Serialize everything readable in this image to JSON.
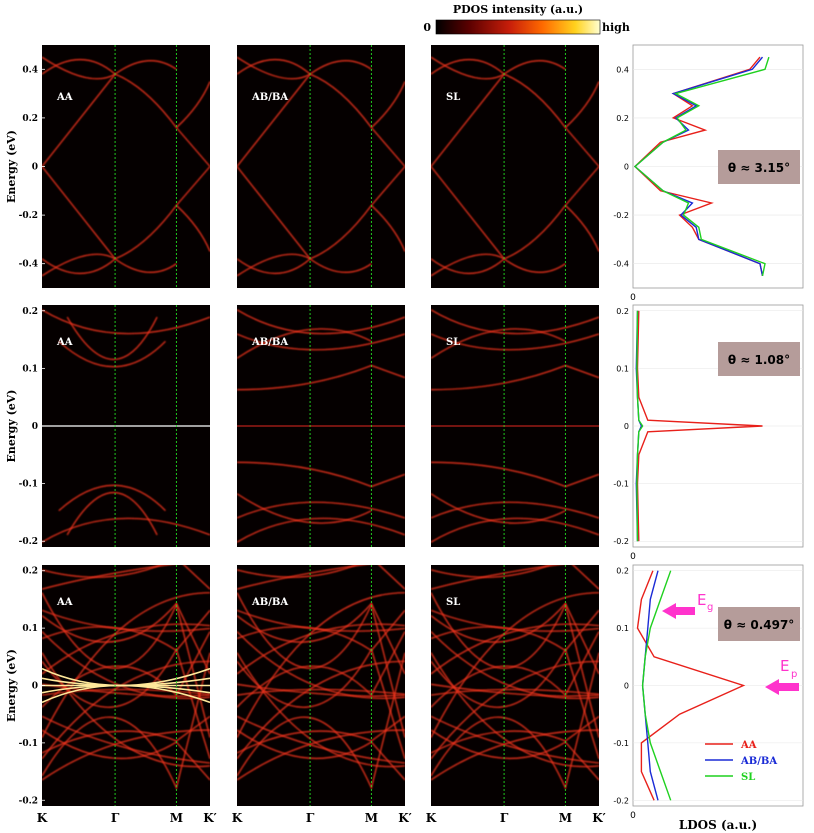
{
  "colorbar": {
    "title": "PDOS intensity (a.u.)",
    "low_label": "0",
    "high_label": "high",
    "colors": [
      "#000000",
      "#5a0000",
      "#c81e0a",
      "#ff6a00",
      "#ffd21e",
      "#ffffd2"
    ]
  },
  "band_ylabel": "Energy (eV)",
  "ldos_xlabel": "LDOS (a.u.)",
  "kpath_ticks": [
    "K",
    "Γ",
    "M",
    "K′"
  ],
  "stacking_labels": [
    "AA",
    "AB/BA",
    "SL"
  ],
  "rows": [
    {
      "theta_label": "θ ≈ 3.15°",
      "ylim": [
        -0.5,
        0.5
      ],
      "yticks": [
        "0.4",
        "0.2",
        "0",
        "-0.2",
        "-0.4"
      ],
      "ldos_yticks": [
        "0.4",
        "0.2",
        "0",
        "-0.2",
        "-0.4"
      ]
    },
    {
      "theta_label": "θ ≈ 1.08°",
      "ylim": [
        -0.21,
        0.21
      ],
      "yticks": [
        "0.2",
        "0.1",
        "0",
        "-0.1",
        "-0.2"
      ],
      "ldos_yticks": [
        "0.2",
        "0.1",
        "0",
        "-0.1",
        "-0.2"
      ]
    },
    {
      "theta_label": "θ ≈ 0.497°",
      "ylim": [
        -0.21,
        0.21
      ],
      "yticks": [
        "0.2",
        "0.1",
        "0",
        "-0.1",
        "-0.2"
      ],
      "ldos_yticks": [
        "0.2",
        "0.1",
        "0",
        "-0.1",
        "-0.2"
      ]
    }
  ],
  "ldos_x_tick": "0",
  "annotations": {
    "eg_main": "E",
    "eg_sub": "g",
    "ep_main": "E",
    "ep_sub": "p",
    "color": "#ff33cc"
  },
  "legend": [
    {
      "label": "AA",
      "color": "#e8201a"
    },
    {
      "label": "AB/BA",
      "color": "#1a2bd6"
    },
    {
      "label": "SL",
      "color": "#1fd11f"
    }
  ],
  "chart_data": [
    {
      "type": "heatmap",
      "row": 1,
      "description_key": "theta_3.15",
      "ylim": [
        -0.5,
        0.5
      ],
      "ldos": {
        "energy": [
          -0.45,
          -0.4,
          -0.3,
          -0.25,
          -0.2,
          -0.15,
          -0.1,
          0.0,
          0.1,
          0.15,
          0.2,
          0.25,
          0.3,
          0.4,
          0.45
        ],
        "AA": [
          1.0,
          0.98,
          0.5,
          0.45,
          0.35,
          0.6,
          0.2,
          0.0,
          0.2,
          0.55,
          0.3,
          0.45,
          0.3,
          0.9,
          0.98
        ],
        "AB/BA": [
          1.0,
          0.98,
          0.5,
          0.48,
          0.36,
          0.45,
          0.22,
          0.0,
          0.22,
          0.42,
          0.32,
          0.48,
          0.3,
          0.92,
          1.0
        ],
        "SL": [
          1.0,
          1.02,
          0.52,
          0.5,
          0.38,
          0.42,
          0.22,
          0.0,
          0.22,
          0.4,
          0.33,
          0.5,
          0.32,
          1.02,
          1.05
        ]
      }
    },
    {
      "type": "heatmap",
      "row": 2,
      "description_key": "theta_1.08",
      "ylim": [
        -0.21,
        0.21
      ],
      "ldos": {
        "energy": [
          -0.2,
          -0.1,
          -0.05,
          -0.01,
          0.0,
          0.01,
          0.05,
          0.1,
          0.2
        ],
        "AA": [
          0.03,
          0.02,
          0.03,
          0.1,
          1.0,
          0.1,
          0.03,
          0.02,
          0.03
        ],
        "AB/BA": [
          0.02,
          0.01,
          0.02,
          0.03,
          0.05,
          0.03,
          0.02,
          0.01,
          0.02
        ],
        "SL": [
          0.02,
          0.015,
          0.02,
          0.03,
          0.06,
          0.03,
          0.02,
          0.015,
          0.02
        ]
      }
    },
    {
      "type": "heatmap",
      "row": 3,
      "description_key": "theta_0.497",
      "ylim": [
        -0.21,
        0.21
      ],
      "ldos": {
        "energy": [
          -0.2,
          -0.15,
          -0.1,
          -0.05,
          0.0,
          0.05,
          0.1,
          0.15,
          0.2
        ],
        "AA": [
          0.15,
          0.05,
          0.05,
          0.35,
          0.85,
          0.15,
          0.02,
          0.05,
          0.14
        ],
        "AB/BA": [
          0.18,
          0.12,
          0.1,
          0.08,
          0.06,
          0.08,
          0.1,
          0.12,
          0.18
        ],
        "SL": [
          0.28,
          0.2,
          0.12,
          0.08,
          0.06,
          0.08,
          0.12,
          0.2,
          0.28
        ]
      }
    }
  ]
}
